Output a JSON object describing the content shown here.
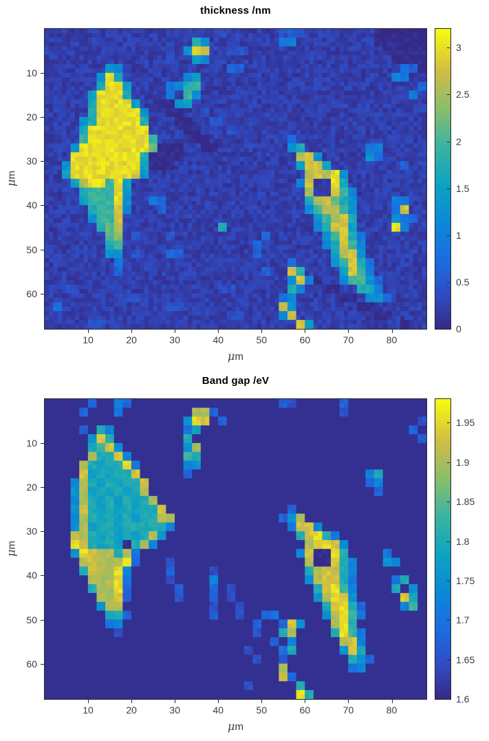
{
  "chart_data": [
    {
      "type": "heatmap",
      "title": "thickness /nm",
      "xlabel": "μm",
      "ylabel": "μm",
      "x_ticks": [
        10,
        20,
        30,
        40,
        50,
        60,
        70,
        80
      ],
      "y_ticks": [
        10,
        20,
        30,
        40,
        50,
        60
      ],
      "x_range_um": [
        0,
        88
      ],
      "y_range_um": [
        0,
        68
      ],
      "cell_um": 2,
      "colorbar": {
        "range": [
          0,
          3.2
        ],
        "ticks": [
          {
            "value": 0,
            "label": "0"
          },
          {
            "value": 0.5,
            "label": "0.5"
          },
          {
            "value": 1,
            "label": "1"
          },
          {
            "value": 1.5,
            "label": "1.5"
          },
          {
            "value": 2,
            "label": "2"
          },
          {
            "value": 2.5,
            "label": "2.5"
          },
          {
            "value": 3,
            "label": "3"
          }
        ]
      },
      "bg_level": 0.07,
      "noise_bg": 0.05,
      "noise_cell": 0.045,
      "seed": 7,
      "grid": [
        "....................2......232........000000",
        ".................86........45.........000000",
        "................6ed..22................00000",
        "..............2..75.....................0000",
        ".......65............33..................430",
        "......6e8.......57......................54..",
        "......8ee7....4589.........................3",
        ".....7eee8....4.96........................4.",
        ".....8eeee7..0067...........................",
        ".....8eeeee6..00..2.........................",
        "....68eeeee8...00..22.......................",
        "....8eeeeeee....00...2......................",
        "....9eeeeeee9....00.........4...............",
        "...6eeeeeeeea000..00........68.......45.....",
        "...eeeeeeee80000.............cd6.....64.....",
        "..6eeeeeeee7000..............7dd7........3..",
        "..7eeeeeeed6..................cdce6.........",
        "...7cee9e7...................5d11e8.........",
        "....8999e6....................c11d95........",
        "....7999e6..43................8cda86....54..",
        ".....899d5...3................69cc96....4d..",
        ".....699d......................69cd8....643.",
        "......8ac...........8..........58dd7....e5..",
        ".......ab.2...2..........3......69d84.......",
        ".......89...............3.......58d95.......",
        ".......66.2...33........3........7cd6.......",
        "........4...................4....69d84......",
        "........3................3..d8....7d95......",
        "............................6d50..59963.....",
        "..22................22......85..00..885.....",
        ".........22................45.....00.663....",
        ".4............22...........d6.......00......",
        ".....................22....5d.........00....",
        ".....22......................d7..........0.."
      ]
    },
    {
      "type": "heatmap",
      "title": "Band gap /eV",
      "xlabel": "μm",
      "ylabel": "μm",
      "x_ticks": [
        10,
        20,
        30,
        40,
        50,
        60,
        70,
        80
      ],
      "y_ticks": [
        10,
        20,
        30,
        40,
        50,
        60
      ],
      "x_range_um": [
        0,
        88
      ],
      "y_range_um": [
        0,
        68
      ],
      "cell_um": 2,
      "colorbar": {
        "range": [
          1.6,
          1.98
        ],
        "ticks": [
          {
            "value": 1.6,
            "label": "1.6"
          },
          {
            "value": 1.65,
            "label": "1.65"
          },
          {
            "value": 1.7,
            "label": "1.7"
          },
          {
            "value": 1.75,
            "label": "1.75"
          },
          {
            "value": 1.8,
            "label": "1.8"
          },
          {
            "value": 1.85,
            "label": "1.85"
          },
          {
            "value": 1.9,
            "label": "1.9"
          },
          {
            "value": 1.95,
            "label": "1.95"
          }
        ]
      },
      "bg_level": 0.02,
      "noise_bg": 0.0,
      "noise_cell": 0.04,
      "seed": 13,
      "grid": [
        ".....3..53.................32.....3.........",
        "....3...4........cc3..............2.........",
        "................6ed.3......................2",
        "....3.85........47........................3.",
        ".....6d8........8..........................3",
        ".....89d6.......6c..........................",
        ".....c88d5......98..........................",
        "....c8788e4.....56..........................",
        "....d78788d.....3....................58.....",
        "...5c878788d.........................35.....",
        "...6c787878c..........................3.....",
        "...5c8787878c...............................",
        "...6d87878788d..............3...............",
        "...5c87878788cc............36c..............",
        "...6c7887888885.............4dd5............",
        "...dc8787878c6...............8de84..........",
        "...ed878708c5.................cded6.........",
        "...6edcc8c4..................5d00e8....4....",
        "....cdccce3...2...............c00d85...65...",
        "....8dcce5....3....2..........8cdc85........",
        ".....ccce4....2....5..........6cdd84....48..",
        ".....8cce3.....3...3.2.........8de95....8.6.",
        "......ccd3.....2...3.2.........6ced6.....d8.",
        "......6cc..........2..2.........8de83....59.",
        ".......883.........3..2..34.....6ce94.......",
        ".......45...............3..3d6...ce8........",
        "........2...............2..8c....8e94.......",
        "..........................3.5.....cd5.......",
        ".......................2...48.....6d8.......",
        "........................2..2.......863......",
        "...........................c.......45.......",
        "...........................d3...............",
        ".......................2.....8..............",
        ".............................e8............."
      ]
    }
  ],
  "colormap": {
    "name": "parula",
    "stops": [
      [
        0.0,
        [
          53,
          42,
          135
        ]
      ],
      [
        0.11,
        [
          49,
          74,
          192
        ]
      ],
      [
        0.23,
        [
          27,
          108,
          225
        ]
      ],
      [
        0.36,
        [
          11,
          137,
          215
        ]
      ],
      [
        0.48,
        [
          14,
          162,
          194
        ]
      ],
      [
        0.61,
        [
          59,
          180,
          159
        ]
      ],
      [
        0.73,
        [
          134,
          189,
          110
        ]
      ],
      [
        0.86,
        [
          210,
          188,
          69
        ]
      ],
      [
        1.0,
        [
          249,
          251,
          14
        ]
      ]
    ]
  },
  "style": {
    "axis_color": "#262626",
    "tick_label_color": "#3c3c3c",
    "title_color": "#000000",
    "background": "#ffffff"
  }
}
